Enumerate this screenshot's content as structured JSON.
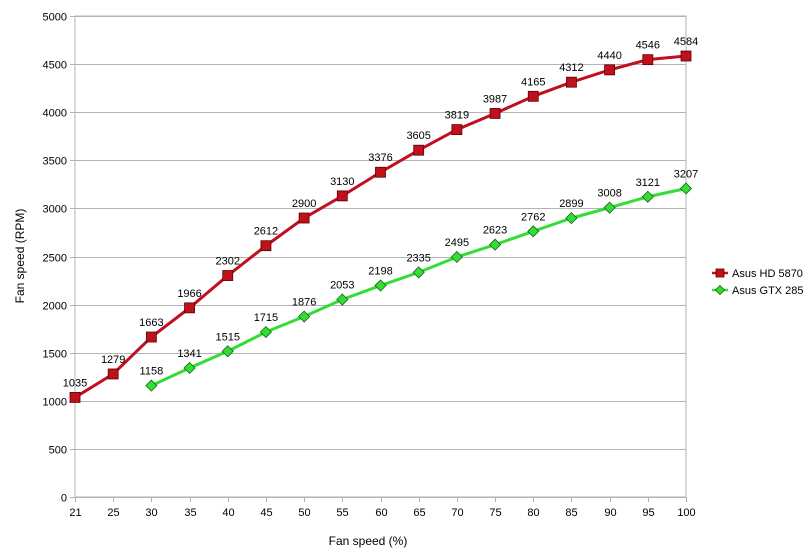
{
  "chart_data": {
    "type": "line",
    "title": "",
    "xlabel": "Fan speed (%)",
    "ylabel": "Fan speed (RPM)",
    "x": [
      21,
      25,
      30,
      35,
      40,
      45,
      50,
      55,
      60,
      65,
      70,
      75,
      80,
      85,
      90,
      95,
      100
    ],
    "ylim": [
      0,
      5000
    ],
    "yticks": [
      0,
      500,
      1000,
      1500,
      2000,
      2500,
      3000,
      3500,
      4000,
      4500,
      5000
    ],
    "grid": "horizontal",
    "legend": "right",
    "series": [
      {
        "name": "Asus HD 5870",
        "color": "#c0101c",
        "marker": "square",
        "x": [
          21,
          25,
          30,
          35,
          40,
          45,
          50,
          55,
          60,
          65,
          70,
          75,
          80,
          85,
          90,
          95,
          100
        ],
        "values": [
          1035,
          1279,
          1663,
          1966,
          2302,
          2612,
          2900,
          3130,
          3376,
          3605,
          3819,
          3987,
          4165,
          4312,
          4440,
          4546,
          4584
        ]
      },
      {
        "name": "Asus GTX 285",
        "color": "#33dd33",
        "marker": "diamond",
        "x": [
          30,
          35,
          40,
          45,
          50,
          55,
          60,
          65,
          70,
          75,
          80,
          85,
          90,
          95,
          100
        ],
        "values": [
          1158,
          1341,
          1515,
          1715,
          1876,
          2053,
          2198,
          2335,
          2495,
          2623,
          2762,
          2899,
          3008,
          3121,
          3207
        ]
      }
    ]
  }
}
